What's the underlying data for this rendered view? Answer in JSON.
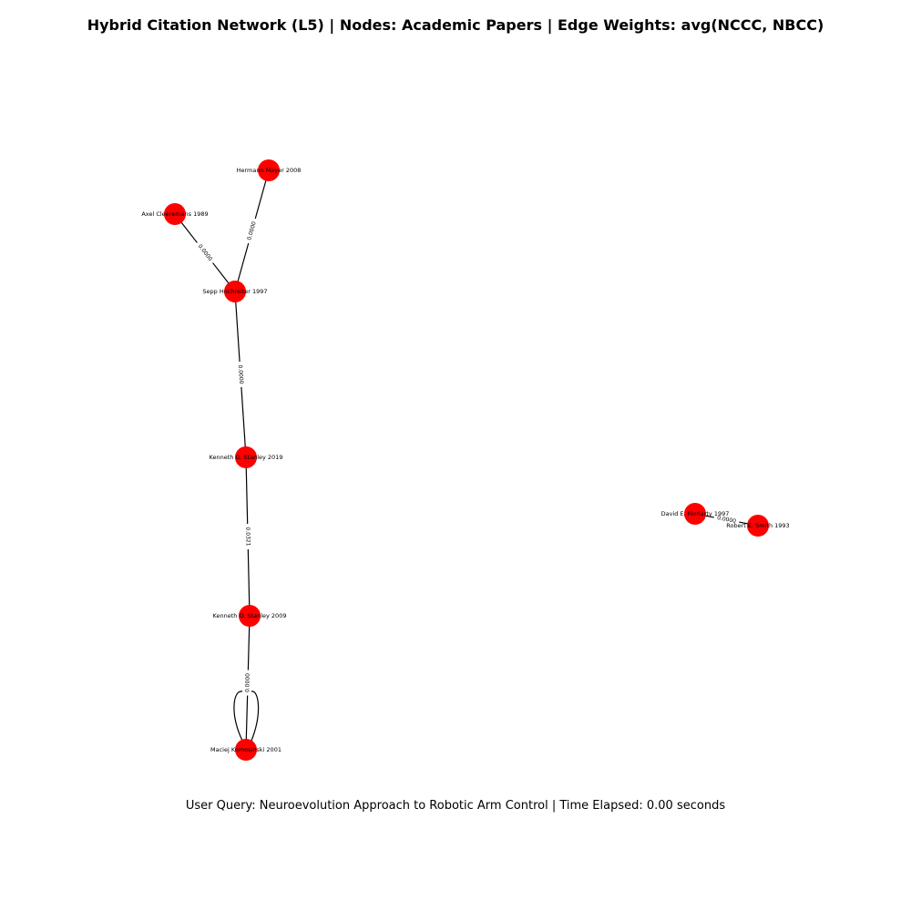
{
  "title": "Hybrid Citation Network (L5) | Nodes: Academic Papers | Edge Weights: avg(NCCC, NBCC)",
  "footer": "User Query:  Neuroevolution Approach to Robotic Arm Control | Time Elapsed: 0.00 seconds",
  "colors": {
    "node": "#ff0000",
    "edge": "#000000"
  },
  "nodes": [
    {
      "id": "mayer2008",
      "label": "Hermann Mayer 2008"
    },
    {
      "id": "cleeremans1989",
      "label": "Axel Cleeremans 1989"
    },
    {
      "id": "hochreiter1997",
      "label": "Sepp Hochreiter 1997"
    },
    {
      "id": "stanley2019",
      "label": "Kenneth O. Stanley 2019"
    },
    {
      "id": "stanley2009",
      "label": "Kenneth O. Stanley 2009"
    },
    {
      "id": "komosinski2001",
      "label": "Maciej Komosinski 2001"
    },
    {
      "id": "moriarty1997",
      "label": "David E. Moriarty 1997"
    },
    {
      "id": "smith1993",
      "label": "Robert E. Smith 1993"
    }
  ],
  "edges": [
    {
      "source": "mayer2008",
      "target": "hochreiter1997",
      "weight": "0.0000"
    },
    {
      "source": "cleeremans1989",
      "target": "hochreiter1997",
      "weight": "0.0000"
    },
    {
      "source": "hochreiter1997",
      "target": "stanley2019",
      "weight": "0.0000"
    },
    {
      "source": "stanley2019",
      "target": "stanley2009",
      "weight": "0.0321"
    },
    {
      "source": "stanley2009",
      "target": "komosinski2001",
      "weight": "0.0000"
    },
    {
      "source": "moriarty1997",
      "target": "smith1993",
      "weight": "0.0000"
    },
    {
      "source": "komosinski2001",
      "target": "komosinski2001",
      "weight": ""
    }
  ]
}
